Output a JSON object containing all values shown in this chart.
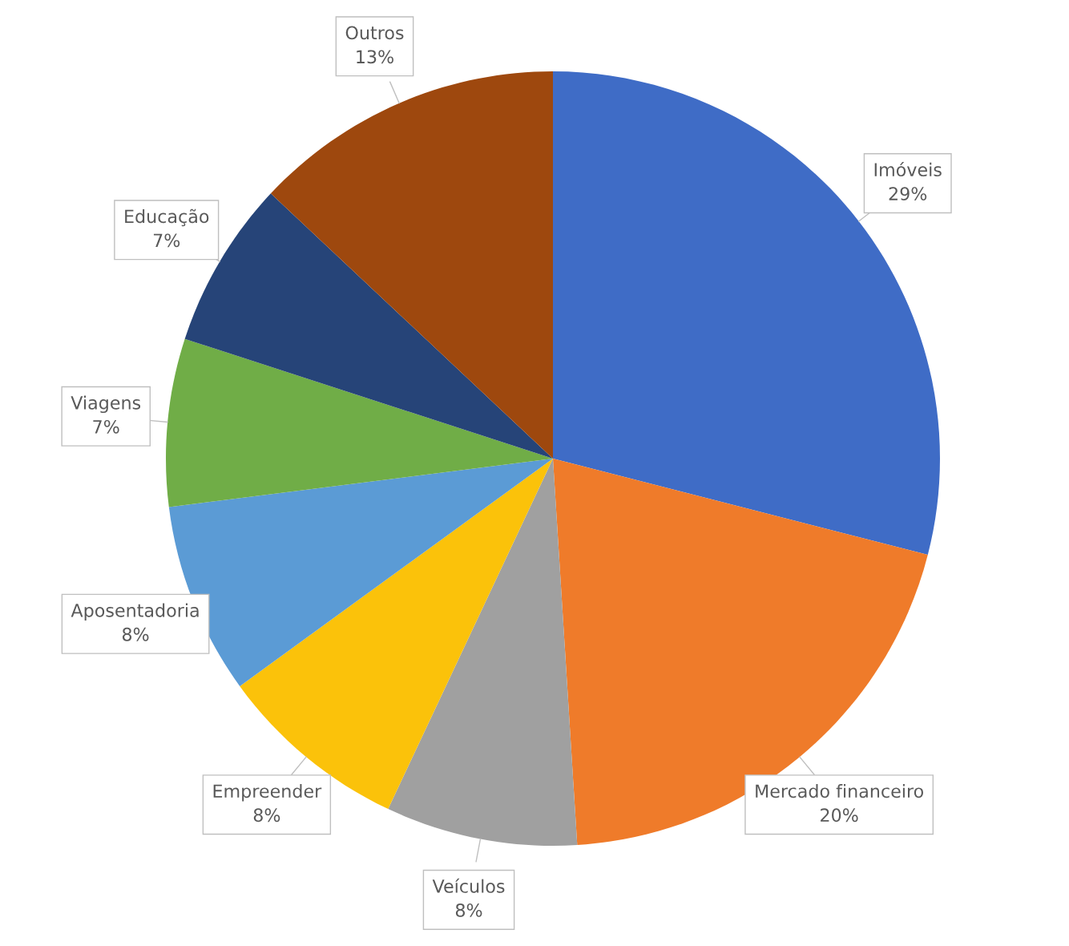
{
  "chart_data": {
    "type": "pie",
    "categories": [
      "Imóveis",
      "Mercado financeiro",
      "Veículos",
      "Empreender",
      "Aposentadoria",
      "Viagens",
      "Educação",
      "Outros"
    ],
    "values": [
      29,
      20,
      8,
      8,
      8,
      7,
      7,
      13
    ],
    "value_labels": [
      "29%",
      "20%",
      "8%",
      "8%",
      "8%",
      "7%",
      "7%",
      "13%"
    ],
    "colors": [
      "#3f6cc6",
      "#ef7b2a",
      "#a0a0a0",
      "#fbc20a",
      "#5b9bd5",
      "#70ad47",
      "#264478",
      "#9e480e"
    ],
    "legend": false
  }
}
